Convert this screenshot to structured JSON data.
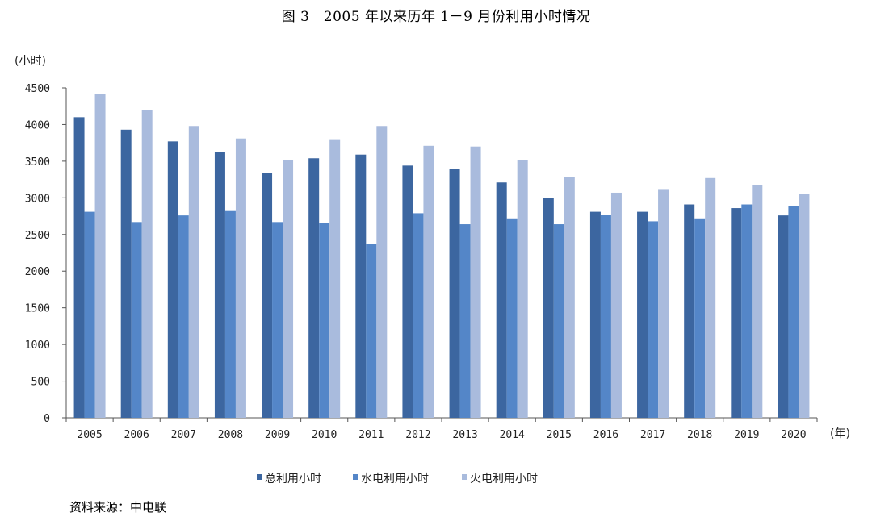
{
  "title": "图 3　2005 年以来历年 1－9 月份利用小时情况",
  "source": "资料来源：中电联",
  "chart_data": {
    "type": "bar",
    "ylabel": "(小时)",
    "xlabel": "(年)",
    "ylim": [
      0,
      4500
    ],
    "yticks": [
      0,
      500,
      1000,
      1500,
      2000,
      2500,
      3000,
      3500,
      4000,
      4500
    ],
    "grid": false,
    "legend": "bottom",
    "categories": [
      "2005",
      "2006",
      "2007",
      "2008",
      "2009",
      "2010",
      "2011",
      "2012",
      "2013",
      "2014",
      "2015",
      "2016",
      "2017",
      "2018",
      "2019",
      "2020"
    ],
    "series": [
      {
        "name": "总利用小时",
        "color": "#3c66a0",
        "values": [
          4100,
          3930,
          3770,
          3630,
          3340,
          3540,
          3590,
          3440,
          3390,
          3210,
          3000,
          2810,
          2810,
          2910,
          2860,
          2760
        ]
      },
      {
        "name": "水电利用小时",
        "color": "#5486c8",
        "values": [
          2810,
          2670,
          2760,
          2820,
          2670,
          2660,
          2370,
          2790,
          2640,
          2720,
          2640,
          2770,
          2680,
          2720,
          2910,
          2890
        ]
      },
      {
        "name": "火电利用小时",
        "color": "#a9bbdd",
        "values": [
          4420,
          4200,
          3980,
          3810,
          3510,
          3800,
          3980,
          3710,
          3700,
          3510,
          3280,
          3070,
          3120,
          3270,
          3170,
          3050
        ]
      }
    ]
  }
}
